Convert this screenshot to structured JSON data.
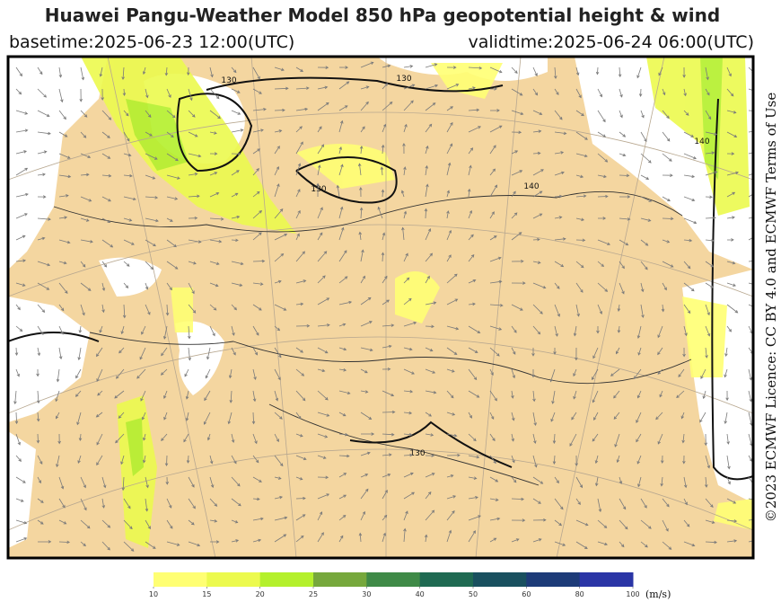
{
  "header": {
    "title": "Huawei Pangu-Weather Model 850 hPa geopotential height & wind",
    "basetime": "basetime:2025-06-23 12:00(UTC)",
    "validtime": "validtime:2025-06-24 06:00(UTC)"
  },
  "licence": "©2023 ECMWF Licence: CC BY 4.0 and ECMWF Terms of Use",
  "contour_labels": [
    "130",
    "130",
    "130",
    "140",
    "140",
    "130"
  ],
  "colorbar": {
    "ticks": [
      10,
      15,
      20,
      25,
      30,
      40,
      50,
      60,
      80,
      100
    ],
    "colors": [
      "#ffff73",
      "#ecfa4e",
      "#b4f02c",
      "#76a83c",
      "#3f8a47",
      "#1f6a52",
      "#19505f",
      "#1d3b78",
      "#2a35a6"
    ],
    "unit": "(m/s)"
  }
}
